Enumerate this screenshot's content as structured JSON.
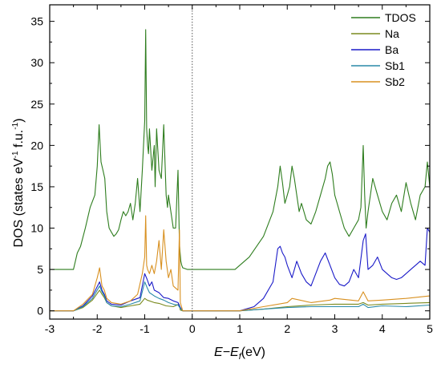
{
  "chart_data": {
    "type": "line",
    "title": "",
    "xlabel": {
      "main": "E−E",
      "sub": "f",
      "unit": "(eV)"
    },
    "ylabel": {
      "main": "DOS (states eV",
      "sup1": "-1",
      "mid": " f.u.",
      "sup2": "-1",
      "end": ")"
    },
    "xlim": [
      -3,
      5
    ],
    "ylim": [
      -1,
      37
    ],
    "xticks": [
      -3,
      -2,
      -1,
      0,
      1,
      2,
      3,
      4,
      5
    ],
    "yticks": [
      0,
      5,
      10,
      15,
      20,
      25,
      30,
      35
    ],
    "fermi_level_x": 0,
    "grid": false,
    "legend_position": "top-right",
    "series": [
      {
        "name": "TDOS",
        "color": "#2e7d1e",
        "x": [
          -3.0,
          -2.5,
          -2.42,
          -2.35,
          -2.25,
          -2.15,
          -2.05,
          -2.0,
          -1.96,
          -1.92,
          -1.88,
          -1.84,
          -1.8,
          -1.75,
          -1.7,
          -1.65,
          -1.6,
          -1.55,
          -1.5,
          -1.45,
          -1.4,
          -1.35,
          -1.3,
          -1.25,
          -1.2,
          -1.15,
          -1.1,
          -1.05,
          -1.0,
          -0.98,
          -0.96,
          -0.94,
          -0.92,
          -0.9,
          -0.85,
          -0.8,
          -0.78,
          -0.75,
          -0.7,
          -0.65,
          -0.6,
          -0.55,
          -0.52,
          -0.5,
          -0.45,
          -0.4,
          -0.35,
          -0.3,
          -0.27,
          -0.24,
          -0.22,
          -0.2,
          -0.1,
          0.0,
          0.5,
          0.9,
          1.2,
          1.5,
          1.7,
          1.8,
          1.85,
          1.9,
          1.95,
          2.0,
          2.05,
          2.1,
          2.15,
          2.2,
          2.25,
          2.3,
          2.35,
          2.4,
          2.5,
          2.6,
          2.7,
          2.8,
          2.85,
          2.9,
          2.95,
          3.0,
          3.05,
          3.1,
          3.2,
          3.3,
          3.4,
          3.5,
          3.55,
          3.6,
          3.63,
          3.66,
          3.7,
          3.8,
          3.9,
          4.0,
          4.1,
          4.2,
          4.3,
          4.4,
          4.5,
          4.6,
          4.7,
          4.8,
          4.9,
          4.95,
          5.0
        ],
        "y": [
          5.0,
          5.0,
          7.0,
          7.8,
          10.0,
          12.5,
          14.0,
          17.5,
          22.5,
          18.0,
          17.0,
          16.0,
          12.0,
          10.0,
          9.5,
          9.0,
          9.3,
          9.8,
          11.0,
          12.0,
          11.5,
          12.0,
          13.0,
          11.0,
          13.0,
          16.0,
          12.0,
          17.0,
          23.0,
          34.0,
          22.0,
          20.0,
          19.0,
          22.0,
          17.0,
          20.0,
          15.0,
          22.0,
          17.0,
          16.0,
          22.5,
          14.0,
          12.5,
          14.0,
          12.0,
          10.0,
          10.0,
          17.0,
          8.0,
          6.0,
          5.5,
          5.2,
          5.0,
          5.0,
          5.0,
          5.0,
          6.5,
          9.0,
          12.0,
          15.0,
          17.5,
          15.5,
          13.0,
          14.0,
          15.0,
          17.5,
          16.0,
          14.0,
          12.0,
          13.0,
          12.0,
          11.0,
          10.5,
          12.0,
          14.0,
          16.0,
          17.5,
          18.0,
          16.5,
          14.0,
          13.0,
          12.0,
          10.0,
          9.0,
          10.0,
          11.0,
          12.5,
          20.0,
          14.0,
          10.0,
          12.0,
          16.0,
          14.0,
          12.0,
          11.0,
          13.0,
          14.0,
          12.0,
          15.5,
          13.0,
          11.0,
          14.0,
          15.0,
          18.0,
          15.0
        ]
      },
      {
        "name": "Na",
        "color": "#7a8a1e",
        "x": [
          -3.0,
          -2.5,
          -2.3,
          -2.1,
          -1.95,
          -1.9,
          -1.85,
          -1.8,
          -1.7,
          -1.5,
          -1.3,
          -1.1,
          -1.0,
          -0.95,
          -0.8,
          -0.7,
          -0.55,
          -0.4,
          -0.28,
          -0.25,
          -0.2,
          0.0,
          0.5,
          1.0,
          1.5,
          2.0,
          2.5,
          3.0,
          3.5,
          3.6,
          3.7,
          4.0,
          4.5,
          5.0
        ],
        "y": [
          0.0,
          0.0,
          0.4,
          1.3,
          2.5,
          2.0,
          1.6,
          1.0,
          0.6,
          0.4,
          0.6,
          0.8,
          1.5,
          1.3,
          1.0,
          0.9,
          0.6,
          0.5,
          0.8,
          0.1,
          0.0,
          0.0,
          0.0,
          0.0,
          0.2,
          0.5,
          0.7,
          0.8,
          0.8,
          1.0,
          0.7,
          0.8,
          0.9,
          1.0
        ]
      },
      {
        "name": "Ba",
        "color": "#1a1ac8",
        "x": [
          -3.0,
          -2.5,
          -2.3,
          -2.1,
          -1.95,
          -1.9,
          -1.85,
          -1.8,
          -1.7,
          -1.5,
          -1.3,
          -1.1,
          -1.0,
          -0.95,
          -0.9,
          -0.85,
          -0.8,
          -0.7,
          -0.6,
          -0.5,
          -0.4,
          -0.3,
          -0.25,
          -0.2,
          0.0,
          0.5,
          1.0,
          1.3,
          1.5,
          1.7,
          1.8,
          1.85,
          1.9,
          1.95,
          2.0,
          2.1,
          2.2,
          2.3,
          2.4,
          2.5,
          2.6,
          2.7,
          2.8,
          2.9,
          3.0,
          3.1,
          3.2,
          3.3,
          3.4,
          3.5,
          3.6,
          3.65,
          3.7,
          3.8,
          3.9,
          4.0,
          4.1,
          4.2,
          4.3,
          4.4,
          4.5,
          4.6,
          4.7,
          4.8,
          4.9,
          4.95,
          5.0
        ],
        "y": [
          0.0,
          0.0,
          0.6,
          1.8,
          3.5,
          2.5,
          2.0,
          1.2,
          0.8,
          0.7,
          1.2,
          1.6,
          4.5,
          3.8,
          3.0,
          3.5,
          2.5,
          2.2,
          1.6,
          1.5,
          1.2,
          1.0,
          0.4,
          0.0,
          0.0,
          0.0,
          0.0,
          0.5,
          1.5,
          3.5,
          7.5,
          7.8,
          7.0,
          6.5,
          5.5,
          4.0,
          6.0,
          4.5,
          3.5,
          3.0,
          4.5,
          6.0,
          7.0,
          5.5,
          4.0,
          3.2,
          3.0,
          3.5,
          5.0,
          4.0,
          8.5,
          9.3,
          5.0,
          5.5,
          6.5,
          5.0,
          4.5,
          4.0,
          3.8,
          4.0,
          4.5,
          5.0,
          5.5,
          6.0,
          5.5,
          10.0,
          9.5
        ]
      },
      {
        "name": "Sb1",
        "color": "#2a8aa8",
        "x": [
          -3.0,
          -2.5,
          -2.3,
          -2.1,
          -1.95,
          -1.9,
          -1.85,
          -1.8,
          -1.7,
          -1.5,
          -1.3,
          -1.1,
          -1.0,
          -0.95,
          -0.9,
          -0.8,
          -0.7,
          -0.6,
          -0.5,
          -0.4,
          -0.3,
          -0.25,
          -0.2,
          0.0,
          0.5,
          1.0,
          1.5,
          2.0,
          2.5,
          3.0,
          3.5,
          3.6,
          3.7,
          4.0,
          4.5,
          5.0
        ],
        "y": [
          0.0,
          0.0,
          0.5,
          1.5,
          3.0,
          2.3,
          1.8,
          1.0,
          0.6,
          0.5,
          0.8,
          1.2,
          3.5,
          2.8,
          2.2,
          1.8,
          1.5,
          1.3,
          1.0,
          0.8,
          0.7,
          0.3,
          0.0,
          0.0,
          0.0,
          0.0,
          0.2,
          0.4,
          0.5,
          0.5,
          0.5,
          0.8,
          0.4,
          0.6,
          0.5,
          0.7
        ]
      },
      {
        "name": "Sb2",
        "color": "#d89020",
        "x": [
          -3.0,
          -2.5,
          -2.3,
          -2.1,
          -2.0,
          -1.95,
          -1.9,
          -1.85,
          -1.8,
          -1.7,
          -1.5,
          -1.3,
          -1.15,
          -1.05,
          -1.0,
          -0.98,
          -0.96,
          -0.94,
          -0.9,
          -0.85,
          -0.8,
          -0.75,
          -0.7,
          -0.65,
          -0.6,
          -0.55,
          -0.5,
          -0.45,
          -0.4,
          -0.3,
          -0.27,
          -0.25,
          -0.2,
          0.0,
          0.5,
          1.0,
          1.5,
          2.0,
          2.1,
          2.5,
          2.9,
          3.0,
          3.5,
          3.6,
          3.7,
          4.0,
          4.5,
          5.0
        ],
        "y": [
          0.0,
          0.0,
          0.8,
          2.0,
          4.0,
          5.2,
          3.0,
          2.5,
          1.5,
          1.0,
          0.8,
          1.2,
          2.0,
          4.5,
          6.5,
          11.5,
          5.5,
          5.0,
          4.5,
          5.5,
          4.5,
          6.0,
          8.5,
          5.0,
          9.8,
          6.0,
          4.0,
          5.0,
          3.0,
          2.5,
          9.8,
          1.0,
          0.0,
          0.0,
          0.0,
          0.0,
          0.5,
          1.0,
          1.5,
          1.0,
          1.3,
          1.5,
          1.2,
          2.3,
          1.2,
          1.3,
          1.5,
          1.8
        ]
      }
    ]
  }
}
